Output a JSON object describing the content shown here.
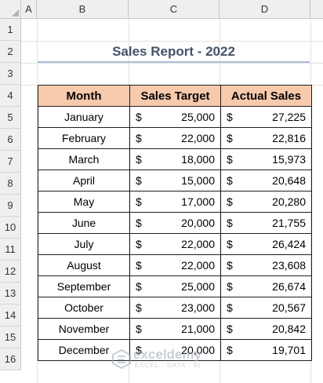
{
  "columns": [
    "A",
    "B",
    "C",
    "D"
  ],
  "rows": [
    "1",
    "2",
    "3",
    "4",
    "5",
    "6",
    "7",
    "8",
    "9",
    "10",
    "11",
    "12",
    "13",
    "14",
    "15",
    "16"
  ],
  "title": "Sales Report - 2022",
  "table": {
    "headers": [
      "Month",
      "Sales Target",
      "Actual Sales"
    ],
    "currency": "$",
    "rows": [
      {
        "month": "January",
        "target": "25,000",
        "actual": "27,225"
      },
      {
        "month": "February",
        "target": "22,000",
        "actual": "22,816"
      },
      {
        "month": "March",
        "target": "18,000",
        "actual": "15,973"
      },
      {
        "month": "April",
        "target": "15,000",
        "actual": "20,648"
      },
      {
        "month": "May",
        "target": "17,000",
        "actual": "20,280"
      },
      {
        "month": "June",
        "target": "20,000",
        "actual": "21,755"
      },
      {
        "month": "July",
        "target": "22,000",
        "actual": "26,424"
      },
      {
        "month": "August",
        "target": "22,000",
        "actual": "23,608"
      },
      {
        "month": "September",
        "target": "25,000",
        "actual": "26,674"
      },
      {
        "month": "October",
        "target": "23,000",
        "actual": "20,567"
      },
      {
        "month": "November",
        "target": "21,000",
        "actual": "20,842"
      },
      {
        "month": "December",
        "target": "20,000",
        "actual": "19,701"
      }
    ]
  },
  "watermark": {
    "name": "exceldemy",
    "tagline": "EXCEL · DATA · BI"
  },
  "colors": {
    "header_fill": "#f7caac",
    "title_text": "#44546a",
    "title_underline": "#a9bfd8"
  }
}
